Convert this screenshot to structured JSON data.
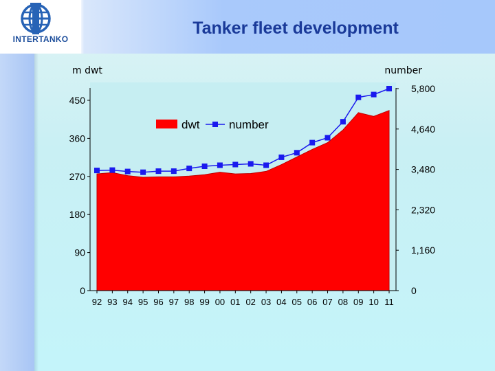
{
  "header": {
    "title": "Tanker fleet development",
    "logo_text": "INTERTANKO"
  },
  "chart_data": {
    "type": "area",
    "categories": [
      "92",
      "93",
      "94",
      "95",
      "96",
      "97",
      "98",
      "99",
      "00",
      "01",
      "02",
      "03",
      "04",
      "05",
      "06",
      "07",
      "08",
      "09",
      "10",
      "11"
    ],
    "left_axis": {
      "label": "m dwt",
      "ticks": [
        "0",
        "90",
        "180",
        "270",
        "360",
        "450"
      ],
      "range": [
        0,
        450
      ]
    },
    "right_axis": {
      "label": "number",
      "ticks": [
        "0",
        "1,160",
        "2,320",
        "3,480",
        "4,640",
        "5,800"
      ],
      "range": [
        0,
        5800
      ]
    },
    "legend": [
      "dwt",
      "number"
    ],
    "legend_position": "top-center",
    "series": [
      {
        "name": "dwt",
        "axis": "left",
        "type": "area",
        "color": "#ff0000",
        "values": [
          276,
          279,
          272,
          268,
          269,
          269,
          271,
          274,
          280,
          276,
          277,
          282,
          298,
          316,
          334,
          350,
          380,
          421,
          412,
          426
        ]
      },
      {
        "name": "number",
        "axis": "right",
        "type": "line",
        "color": "#1a1aee",
        "marker": "square",
        "values": [
          3450,
          3460,
          3420,
          3400,
          3430,
          3430,
          3510,
          3570,
          3600,
          3620,
          3640,
          3600,
          3830,
          3960,
          4250,
          4390,
          4850,
          5550,
          5630,
          5800
        ]
      }
    ]
  }
}
